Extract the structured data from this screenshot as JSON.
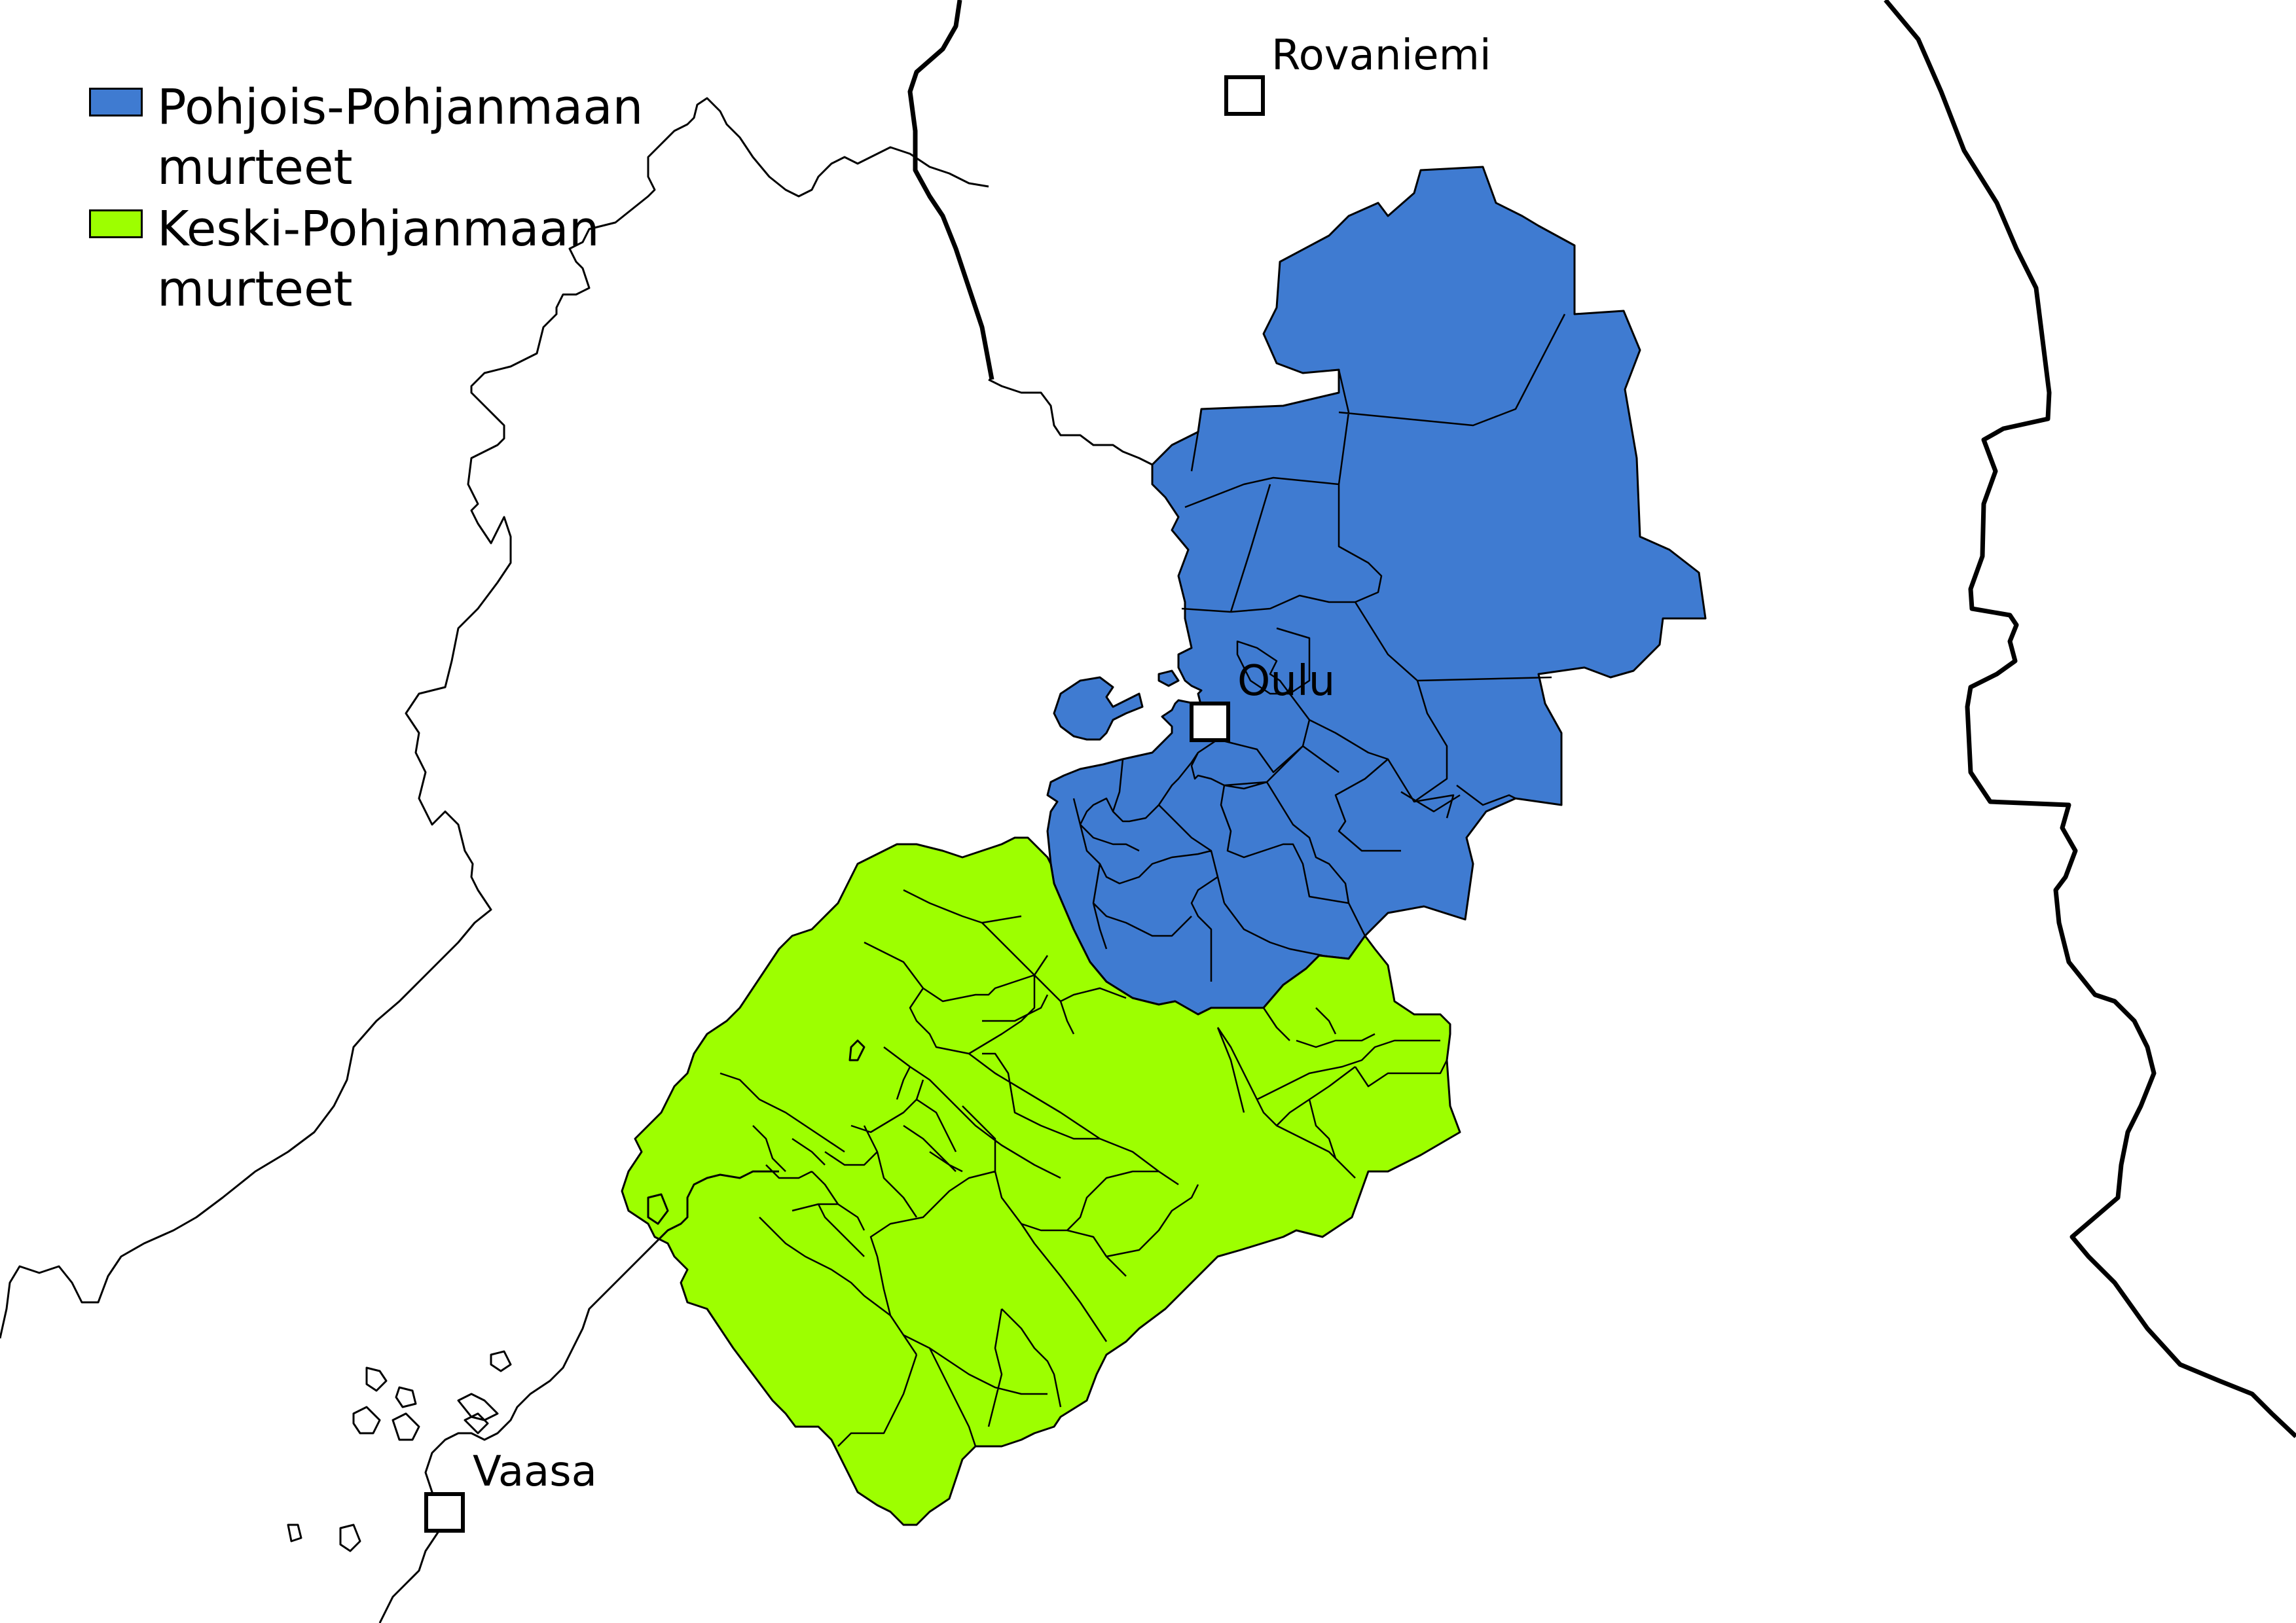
{
  "legend": {
    "items": [
      {
        "label": "Pohjois-Pohjanmaan murteet",
        "color": "#3f7bd1"
      },
      {
        "label": "Keski-Pohjanmaan murteet",
        "color": "#9dff00"
      }
    ]
  },
  "cities": {
    "rovaniemi": "Rovaniemi",
    "oulu": "Oulu",
    "vaasa": "Vaasa"
  }
}
